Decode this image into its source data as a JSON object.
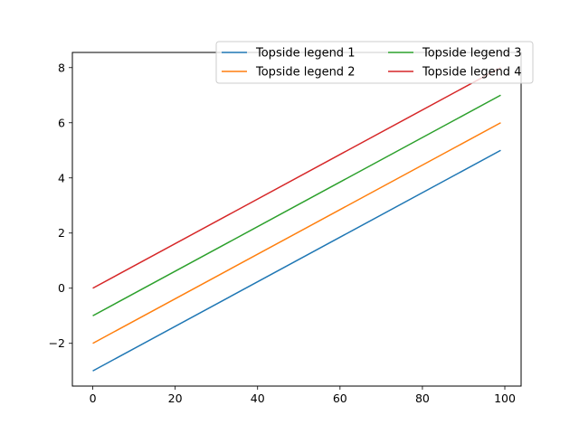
{
  "chart_data": {
    "type": "line",
    "title": "",
    "xlabel": "",
    "ylabel": "",
    "xlim": [
      -4.95,
      103.95
    ],
    "ylim": [
      -3.55,
      8.55
    ],
    "xticks": [
      0,
      20,
      40,
      60,
      80,
      100
    ],
    "yticks": [
      -2,
      0,
      2,
      4,
      6,
      8
    ],
    "ytick_labels": [
      "−2",
      "0",
      "2",
      "4",
      "6",
      "8"
    ],
    "grid": false,
    "legend": {
      "location": "upper-right",
      "columns": 2
    },
    "series": [
      {
        "name": "Topside legend 1",
        "color": "#1f77b4",
        "x": [
          0,
          99
        ],
        "y": [
          -3,
          5
        ]
      },
      {
        "name": "Topside legend 2",
        "color": "#ff7f0e",
        "x": [
          0,
          99
        ],
        "y": [
          -2,
          6
        ]
      },
      {
        "name": "Topside legend 3",
        "color": "#2ca02c",
        "x": [
          0,
          99
        ],
        "y": [
          -1,
          7
        ]
      },
      {
        "name": "Topside legend 4",
        "color": "#d62728",
        "x": [
          0,
          99
        ],
        "y": [
          0,
          8
        ]
      }
    ]
  }
}
